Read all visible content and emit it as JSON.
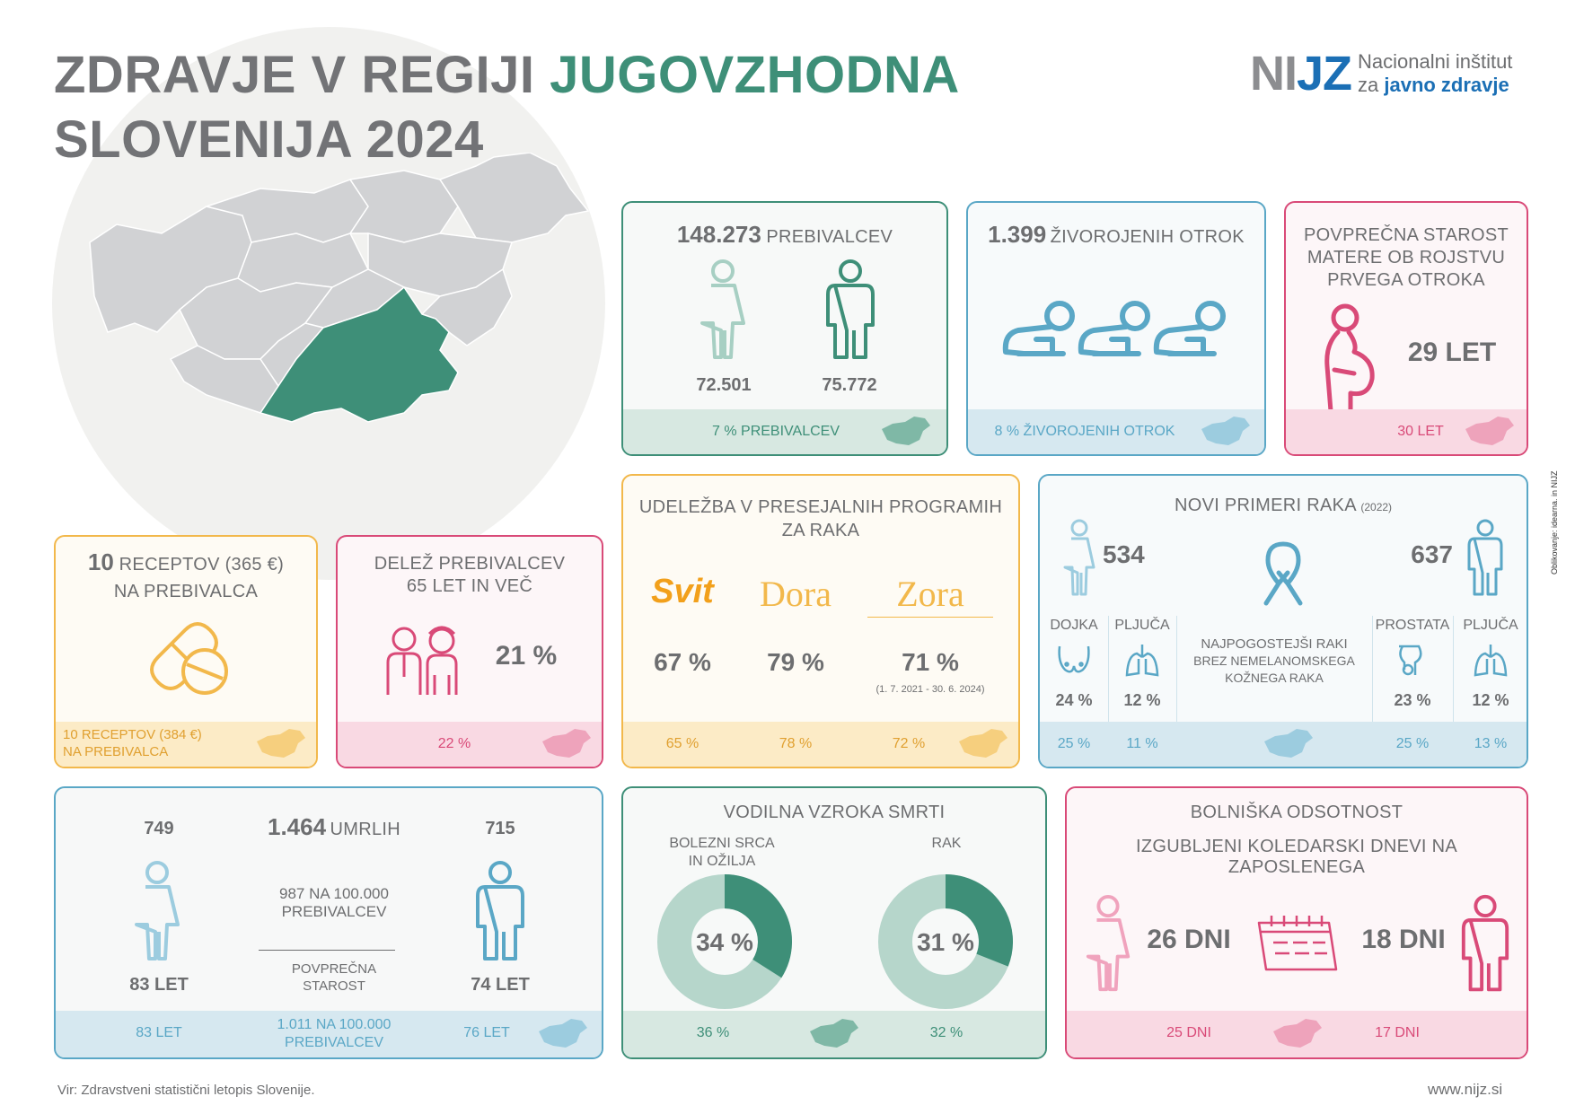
{
  "header": {
    "title_part1": "ZDRAVJE V REGIJI ",
    "title_highlight": "JUGOVZHODNA",
    "title_line2": "SLOVENIJA 2024",
    "logo_letters_1": "NI",
    "logo_letters_2": "JZ",
    "logo_line1": "Nacionalni inštitut",
    "logo_line2a": "za ",
    "logo_line2b": "javno zdravje"
  },
  "colors": {
    "green": "#3e8f78",
    "blue": "#5aa7c6",
    "pink": "#d94a78",
    "orange": "#f2b84b",
    "grey": "#6d6e70"
  },
  "population": {
    "total": "148.273",
    "label": "PREBIVALCEV",
    "female": "72.501",
    "male": "75.772",
    "share": "7 % PREBIVALCEV"
  },
  "births": {
    "total": "1.399",
    "label": "ŽIVOROJENIH OTROK",
    "share": "8 %  ŽIVOROJENIH OTROK"
  },
  "mother_age": {
    "line1": "POVPREČNA STAROST",
    "line2": "MATERE OB ROJSTVU",
    "line3": "PRVEGA OTROKA",
    "value": "29 LET",
    "slovenia": "30 LET"
  },
  "prescriptions": {
    "count": "10",
    "label1": " RECEPTOV (365 €)",
    "label2": "NA PREBIVALCA",
    "slovenia1": "10 RECEPTOV (384 €)",
    "slovenia2": "NA PREBIVALCA"
  },
  "elderly": {
    "line1": "DELEŽ PREBIVALCEV",
    "line2": "65 LET IN VEČ",
    "value": "21 %",
    "slovenia": "22 %"
  },
  "screening": {
    "line1": "UDELEŽBA V PRESEJALNIH PROGRAMIH",
    "line2": "ZA RAKA",
    "programs": [
      {
        "name": "Svit",
        "value": "67 %",
        "slovenia": "65 %"
      },
      {
        "name": "Dora",
        "value": "79 %",
        "slovenia": "78 %"
      },
      {
        "name": "Zora",
        "value": "71 %",
        "note": "(1. 7. 2021 - 30. 6. 2024)",
        "slovenia": "72 %"
      }
    ]
  },
  "cancer": {
    "title": "NOVI PRIMERI RAKA",
    "year": "(2022)",
    "female": "534",
    "male": "637",
    "mid1": "NAJPOGOSTEJŠI RAKI",
    "mid2": "BREZ NEMELANOMSKEGA",
    "mid3": "KOŽNEGA RAKA",
    "sites": [
      {
        "label": "DOJKA",
        "value": "24 %",
        "slovenia": "25 %"
      },
      {
        "label": "PLJUČA",
        "value": "12 %",
        "slovenia": "11 %"
      },
      {
        "label": "PROSTATA",
        "value": "23 %",
        "slovenia": "25 %"
      },
      {
        "label": "PLJUČA",
        "value": "12 %",
        "slovenia": "13 %"
      }
    ]
  },
  "deaths": {
    "female": "749",
    "male": "715",
    "total": "1.464",
    "label": "UMRLIH",
    "rate1": "987 NA 100.000",
    "rate2": "PREBIVALCEV",
    "age_label1": "POVPREČNA",
    "age_label2": "STAROST",
    "female_age": "83 LET",
    "male_age": "74 LET",
    "slovenia_female_age": "83 LET",
    "slovenia_rate1": "1.011 NA 100.000",
    "slovenia_rate2": "PREBIVALCEV",
    "slovenia_male_age": "76 LET"
  },
  "causes": {
    "title": "VODILNA VZROKA SMRTI",
    "items": [
      {
        "label1": "BOLEZNI SRCA",
        "label2": "IN OŽILJA",
        "value": "34 %",
        "percent": 34,
        "slovenia": "36 %"
      },
      {
        "label1": "RAK",
        "label2": "",
        "value": "31 %",
        "percent": 31,
        "slovenia": "32 %"
      }
    ]
  },
  "sick_leave": {
    "title": "BOLNIŠKA ODSOTNOST",
    "subtitle": "IZGUBLJENI KOLEDARSKI DNEVI NA ZAPOSLENEGA",
    "female": "26 DNI",
    "male": "18 DNI",
    "slovenia_female": "25 DNI",
    "slovenia_male": "17 DNI"
  },
  "footer": {
    "source": "Vir: Zdravstveni statistični letopis Slovenije.",
    "url": "www.nijz.si",
    "credit": "Oblikovanje: idearna. in NIJZ"
  },
  "icons": [
    "woman-icon",
    "man-icon",
    "baby-icon",
    "pregnant-icon",
    "pill-icon",
    "elderly-couple-icon",
    "ribbon-icon",
    "breast-icon",
    "lungs-icon",
    "prostate-icon",
    "calendar-icon",
    "slovenia-map-icon"
  ]
}
